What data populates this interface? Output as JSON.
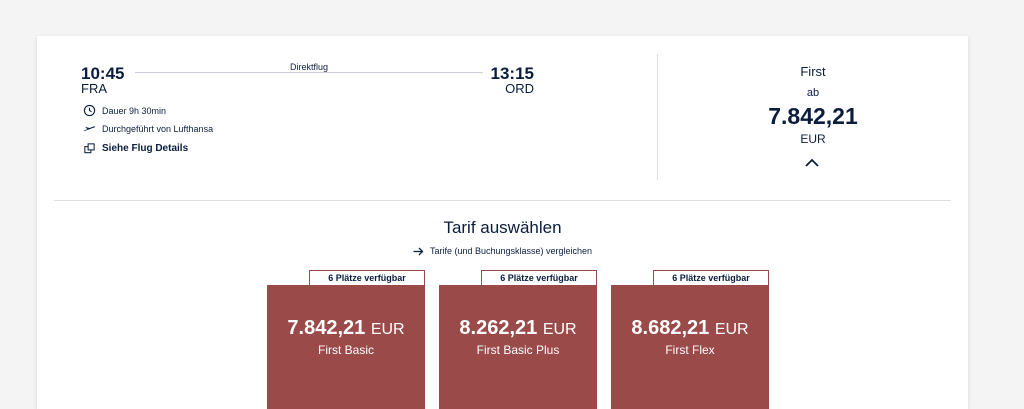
{
  "flight": {
    "departure_time": "10:45",
    "departure_code": "FRA",
    "arrival_time": "13:15",
    "arrival_code": "ORD",
    "type": "Direktflug",
    "duration": "Dauer 9h 30min",
    "operator": "Durchgeführt von Lufthansa",
    "details_link": "Siehe Flug Details"
  },
  "summary": {
    "cabin": "First",
    "from_label": "ab",
    "price": "7.842,21",
    "currency": "EUR"
  },
  "tariffs": {
    "title": "Tarif auswählen",
    "compare_link": "Tarife (und Buchungsklasse) vergleichen",
    "items": [
      {
        "availability": "6 Plätze verfügbar",
        "price": "7.842,21",
        "currency": "EUR",
        "name": "First Basic"
      },
      {
        "availability": "6 Plätze verfügbar",
        "price": "8.262,21",
        "currency": "EUR",
        "name": "First Basic Plus"
      },
      {
        "availability": "6 Plätze verfügbar",
        "price": "8.682,21",
        "currency": "EUR",
        "name": "First Flex"
      }
    ]
  },
  "colors": {
    "navy": "#0a1d3d",
    "fare_card": "#9a4a48",
    "background": "#f4f4f4"
  },
  "icons": [
    "clock-icon",
    "plane-icon",
    "external-link-icon",
    "chevron-up-icon",
    "arrow-right-icon"
  ]
}
